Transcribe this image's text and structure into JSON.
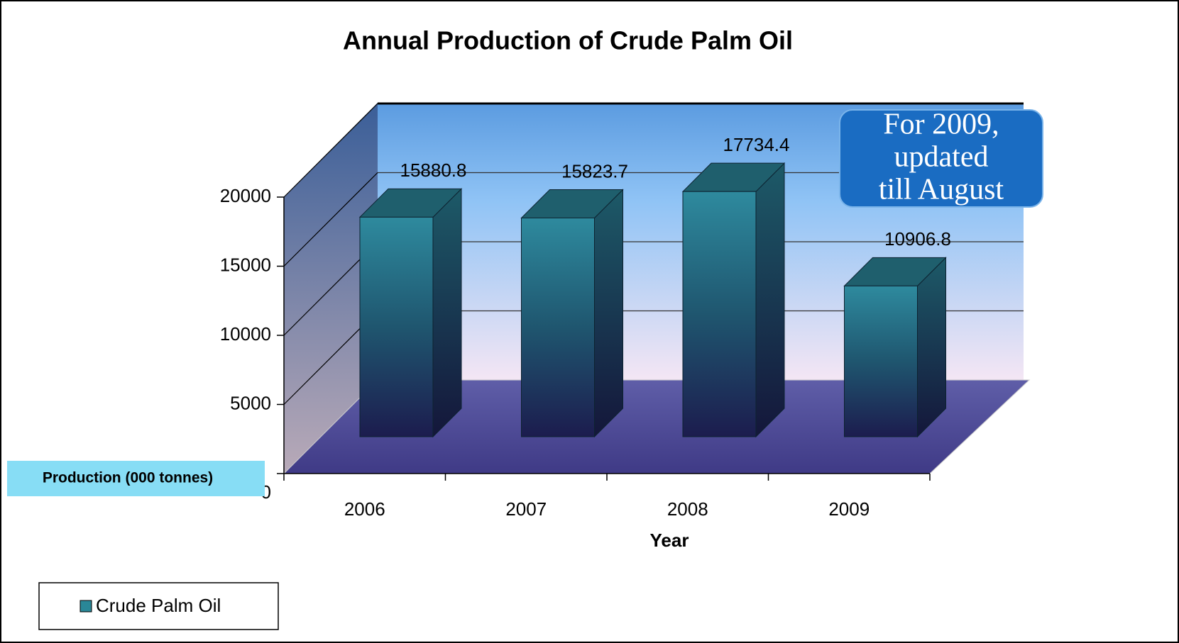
{
  "chart_data": {
    "type": "bar3d",
    "title": "Annual Production of Crude Palm Oil",
    "categories": [
      "2006",
      "2007",
      "2008",
      "2009"
    ],
    "series": [
      {
        "name": "Crude Palm Oil",
        "color": "#2a8797",
        "values": [
          15880.8,
          15823.7,
          17734.4,
          10906.8
        ]
      }
    ],
    "ylim": [
      0,
      20000
    ],
    "yticks": [
      0,
      5000,
      10000,
      15000,
      20000
    ],
    "grid": true,
    "xlabel": "Year",
    "ylabel": "Production (000 tonnes)",
    "annotation": [
      "For 2009,",
      "updated",
      "till August"
    ],
    "legend": "bottom-left"
  }
}
